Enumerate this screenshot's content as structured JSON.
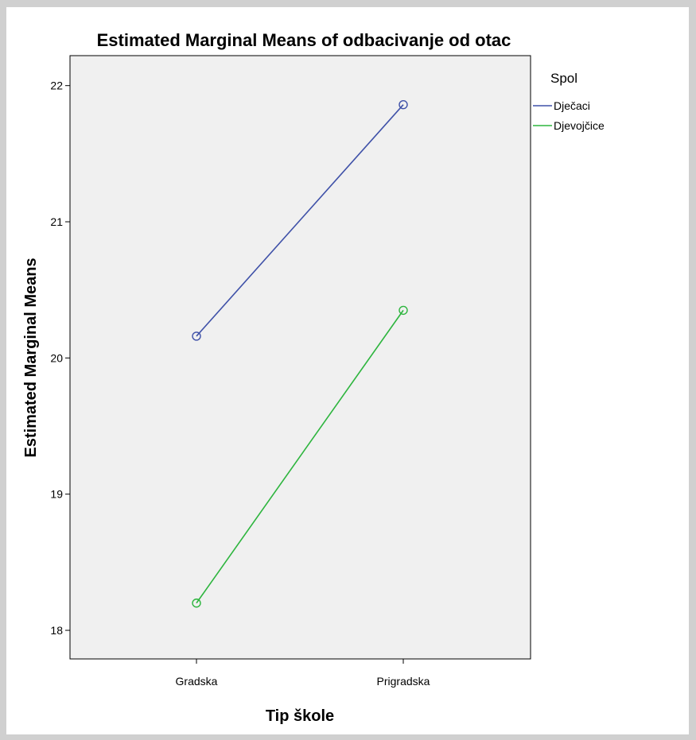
{
  "chart_data": {
    "type": "line",
    "title": "Estimated Marginal Means of odbacivanje od otac",
    "xlabel": "Tip škole",
    "ylabel": "Estimated Marginal Means",
    "categories": [
      "Gradska",
      "Prigradska"
    ],
    "ylim": [
      17.79,
      22.22
    ],
    "yticks": [
      18,
      19,
      20,
      21,
      22
    ],
    "grid": false,
    "legend": {
      "title": "Spol",
      "placement": "top-right outside plot"
    },
    "series": [
      {
        "name": "Dječaci",
        "values": [
          20.16,
          21.86
        ],
        "color": "#3f51a8"
      },
      {
        "name": "Djevojčice",
        "values": [
          18.2,
          20.35
        ],
        "color": "#2db53e"
      }
    ]
  },
  "colors": {
    "page_background": "#d0d0d0",
    "plot_background": "#f0f0f0"
  }
}
